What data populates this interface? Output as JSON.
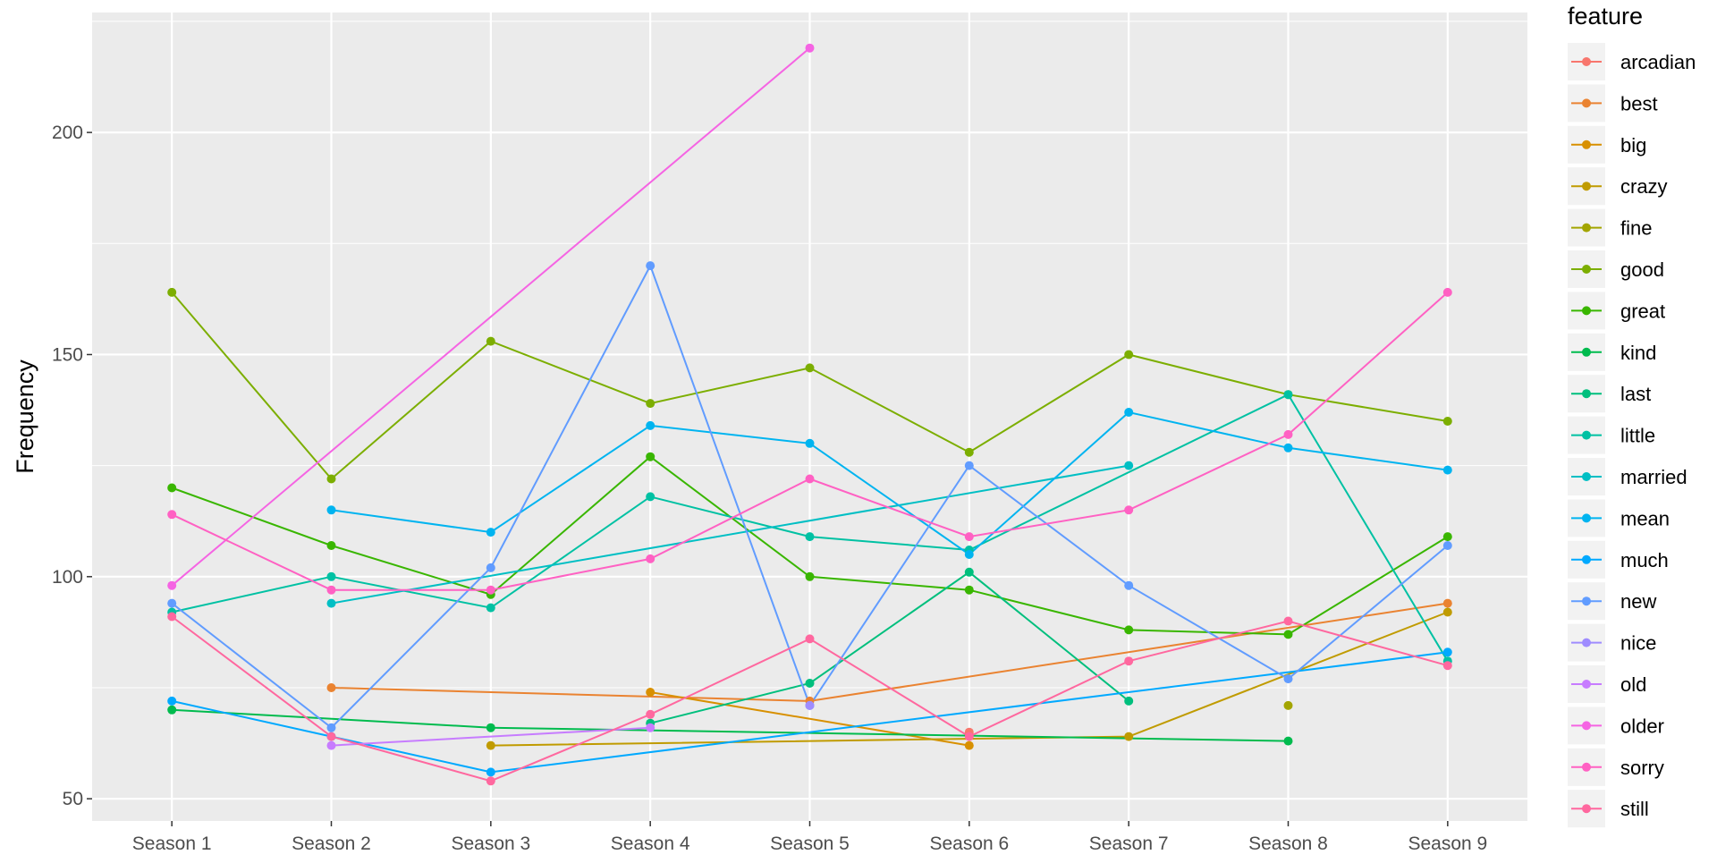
{
  "chart_data": {
    "type": "line",
    "title": "",
    "xlabel": "",
    "ylabel": "Frequency",
    "legend_title": "feature",
    "legend_position": "right",
    "grid": true,
    "ylim": [
      45,
      227
    ],
    "y_ticks": [
      50,
      100,
      150,
      200
    ],
    "categories": [
      "Season 1",
      "Season 2",
      "Season 3",
      "Season 4",
      "Season 5",
      "Season 6",
      "Season 7",
      "Season 8",
      "Season 9"
    ],
    "series": [
      {
        "name": "arcadian",
        "color": "#F8766D",
        "values": [
          null,
          null,
          null,
          null,
          null,
          65,
          null,
          null,
          null
        ]
      },
      {
        "name": "best",
        "color": "#EA8331",
        "values": [
          null,
          75,
          null,
          null,
          72,
          null,
          null,
          null,
          94
        ]
      },
      {
        "name": "big",
        "color": "#D89000",
        "values": [
          null,
          null,
          null,
          74,
          null,
          62,
          null,
          null,
          null
        ]
      },
      {
        "name": "crazy",
        "color": "#C09B00",
        "values": [
          null,
          null,
          62,
          null,
          null,
          null,
          64,
          null,
          92
        ]
      },
      {
        "name": "fine",
        "color": "#A3A500",
        "values": [
          null,
          null,
          null,
          null,
          null,
          null,
          null,
          71,
          null
        ]
      },
      {
        "name": "good",
        "color": "#7CAE00",
        "values": [
          164,
          122,
          153,
          139,
          147,
          128,
          150,
          141,
          135
        ]
      },
      {
        "name": "great",
        "color": "#39B600",
        "values": [
          120,
          107,
          96,
          127,
          100,
          97,
          88,
          87,
          109
        ]
      },
      {
        "name": "kind",
        "color": "#00BB4E",
        "values": [
          70,
          null,
          66,
          null,
          null,
          null,
          null,
          63,
          null
        ]
      },
      {
        "name": "last",
        "color": "#00BF7D",
        "values": [
          null,
          null,
          null,
          67,
          76,
          101,
          72,
          null,
          null
        ]
      },
      {
        "name": "little",
        "color": "#00C1A3",
        "values": [
          92,
          100,
          93,
          118,
          109,
          106,
          null,
          141,
          81
        ]
      },
      {
        "name": "married",
        "color": "#00BFC4",
        "values": [
          null,
          94,
          null,
          null,
          null,
          null,
          125,
          null,
          null
        ]
      },
      {
        "name": "mean",
        "color": "#00B4F0",
        "values": [
          null,
          115,
          110,
          134,
          130,
          105,
          137,
          129,
          124
        ]
      },
      {
        "name": "much",
        "color": "#00A9FF",
        "values": [
          72,
          64,
          56,
          null,
          null,
          null,
          null,
          null,
          83
        ]
      },
      {
        "name": "new",
        "color": "#619CFF",
        "values": [
          94,
          66,
          102,
          170,
          71,
          125,
          98,
          77,
          107
        ]
      },
      {
        "name": "nice",
        "color": "#9F8CFF",
        "values": [
          null,
          null,
          null,
          null,
          71,
          null,
          null,
          null,
          null
        ]
      },
      {
        "name": "old",
        "color": "#C77CFF",
        "values": [
          null,
          62,
          null,
          66,
          null,
          null,
          null,
          null,
          null
        ]
      },
      {
        "name": "older",
        "color": "#F564E3",
        "values": [
          98,
          null,
          null,
          null,
          219,
          null,
          null,
          null,
          null
        ]
      },
      {
        "name": "sorry",
        "color": "#FF61C3",
        "values": [
          114,
          97,
          97,
          104,
          122,
          109,
          115,
          132,
          164
        ]
      },
      {
        "name": "still",
        "color": "#FF689F",
        "values": [
          91,
          64,
          54,
          69,
          86,
          64,
          81,
          90,
          80
        ]
      }
    ]
  }
}
